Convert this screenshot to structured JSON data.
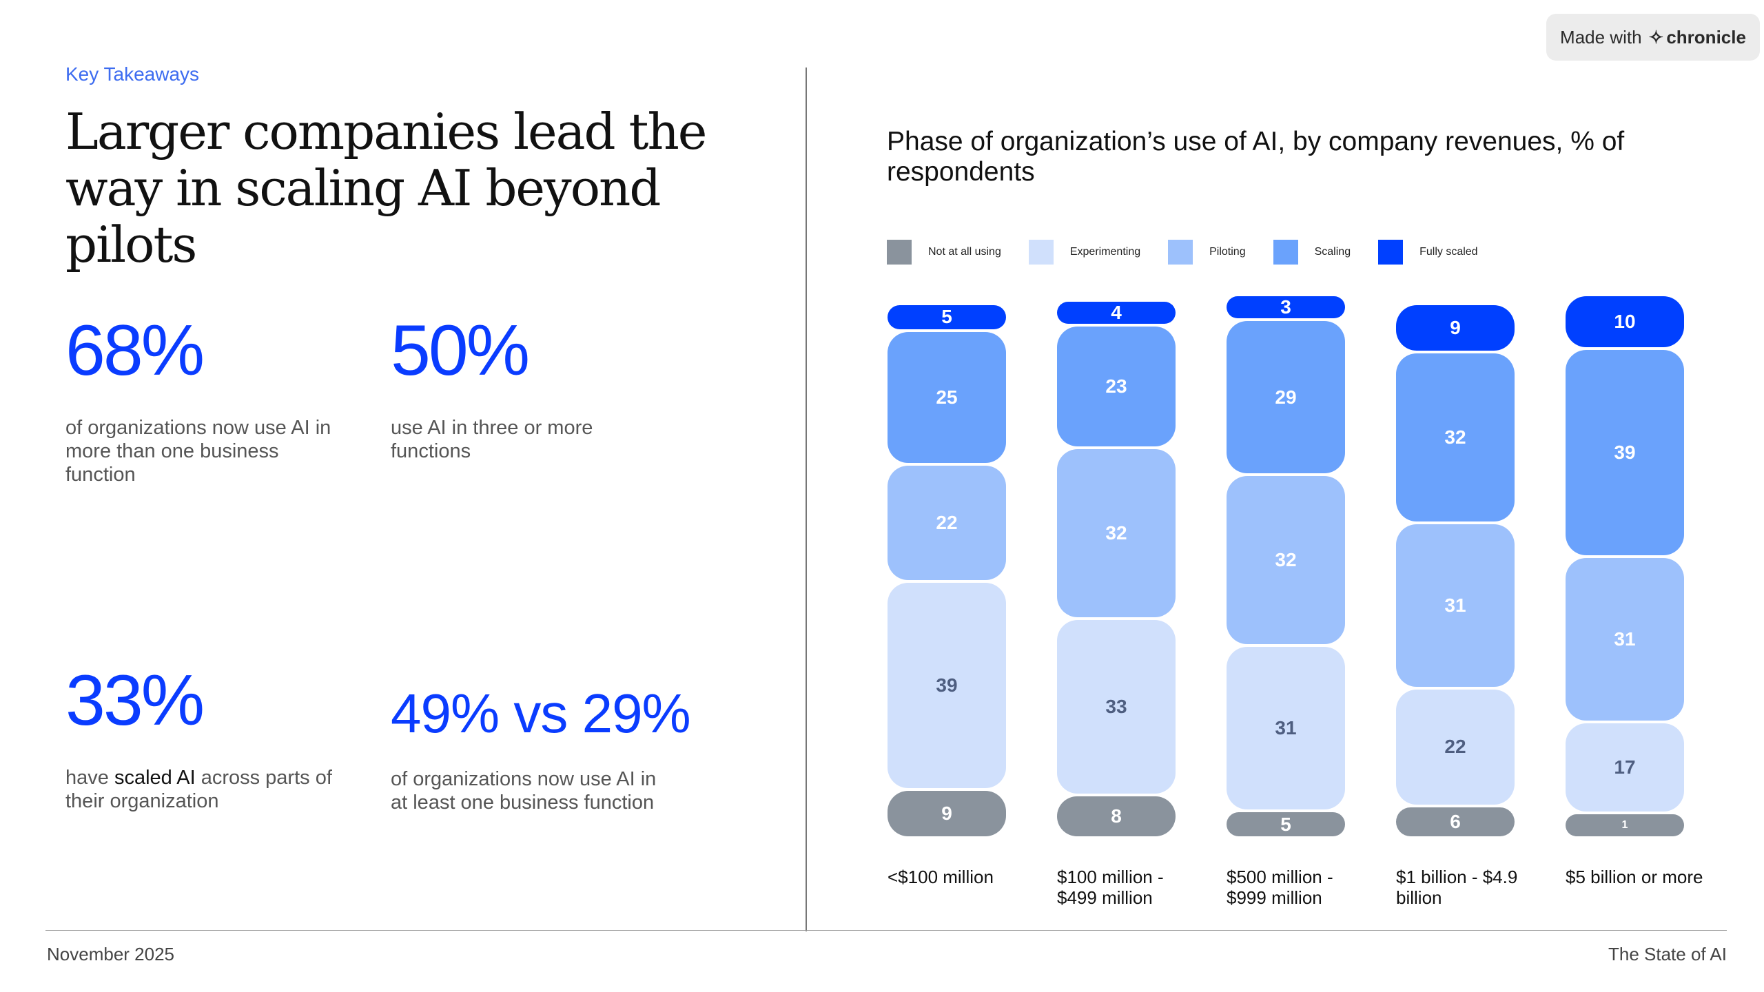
{
  "badge": {
    "prefix": "Made with",
    "brand": "chronicle"
  },
  "left": {
    "kicker": "Key Takeaways",
    "title": "Larger companies lead the way in scaling AI beyond pilots",
    "stats": [
      {
        "value": "68%",
        "desc": "of organizations now use AI in more than one business function"
      },
      {
        "value": "50%",
        "desc": "use AI in three or more functions"
      },
      {
        "value": "33%",
        "desc_pre": "have ",
        "desc_bold": "scaled AI",
        "desc_post": " across parts of their organization"
      },
      {
        "value": "49% vs 29%",
        "desc": "of organizations now use AI in at least one business function"
      }
    ]
  },
  "footer": {
    "date": "November 2025",
    "report": "The State of AI"
  },
  "chart_data": {
    "type": "bar",
    "stacked": true,
    "title": "Phase of organization’s use of AI, by company revenues, % of respondents",
    "legend_position": "top",
    "categories": [
      "<$100 million",
      "$100 million - $499 million",
      "$500 million - $999 million",
      "$1 billion - $4.9 billion",
      "$5 billion or more"
    ],
    "series": [
      {
        "name": "Not at all using",
        "color": "#8a939d",
        "label_color": "#ffffff",
        "values": [
          9,
          8,
          5,
          6,
          1
        ]
      },
      {
        "name": "Experimenting",
        "color": "#d0e0fc",
        "label_color": "#4e5e80",
        "values": [
          39,
          33,
          31,
          22,
          17
        ]
      },
      {
        "name": "Piloting",
        "color": "#9dc1fc",
        "label_color": "#ffffff",
        "values": [
          22,
          32,
          32,
          31,
          31
        ]
      },
      {
        "name": "Scaling",
        "color": "#6aa2fc",
        "label_color": "#ffffff",
        "values": [
          25,
          23,
          29,
          32,
          39
        ]
      },
      {
        "name": "Fully scaled",
        "color": "#0040ff",
        "label_color": "#ffffff",
        "values": [
          5,
          4,
          3,
          9,
          10
        ]
      }
    ],
    "ylim": [
      0,
      100
    ]
  }
}
